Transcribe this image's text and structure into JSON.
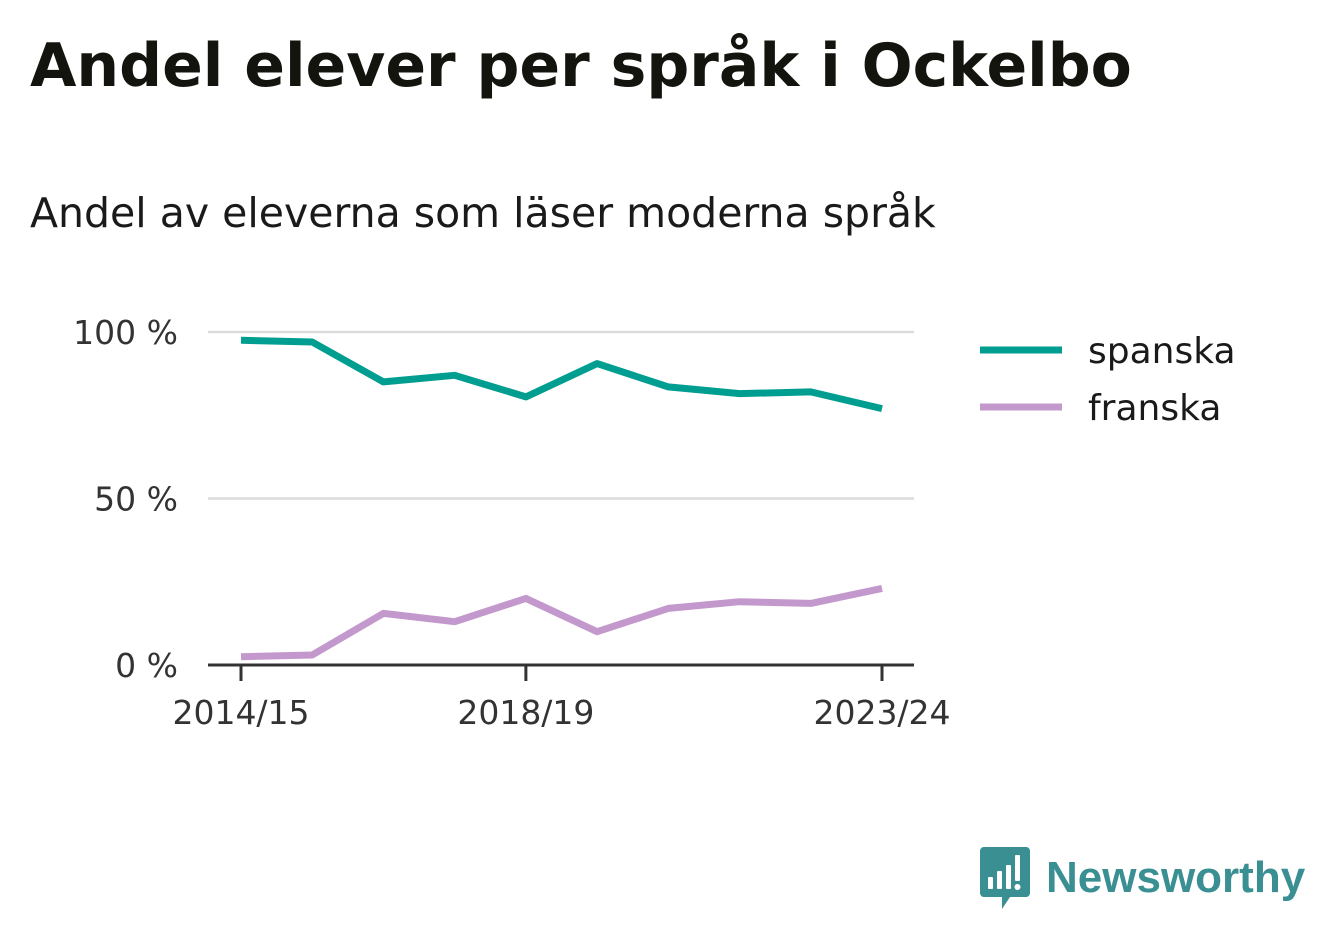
{
  "header": {
    "title": "Andel elever per språk i Ockelbo",
    "subtitle": "Andel av eleverna som läser moderna språk"
  },
  "brand": {
    "name": "Newsworthy",
    "icon": "newsworthy-logo-icon",
    "color": "#3a8f93"
  },
  "chart_data": {
    "type": "line",
    "x": [
      "2014/15",
      "2015/16",
      "2016/17",
      "2017/18",
      "2018/19",
      "2019/20",
      "2020/21",
      "2021/22",
      "2022/23",
      "2023/24"
    ],
    "xticks": [
      "2014/15",
      "2018/19",
      "2023/24"
    ],
    "series": [
      {
        "name": "spanska",
        "color": "#009e91",
        "values": [
          97.5,
          97,
          85,
          87,
          80.5,
          90.5,
          83.5,
          81.5,
          82,
          77
        ]
      },
      {
        "name": "franska",
        "color": "#c398cc",
        "values": [
          2.5,
          3,
          15.5,
          13,
          20,
          10,
          17,
          19,
          18.5,
          23
        ]
      }
    ],
    "yticks": [
      {
        "value": 0,
        "label": "0 %"
      },
      {
        "value": 50,
        "label": "50 %"
      },
      {
        "value": 100,
        "label": "100 %"
      }
    ],
    "ylim": [
      0,
      100
    ],
    "grid": true,
    "legend_position": "right"
  }
}
